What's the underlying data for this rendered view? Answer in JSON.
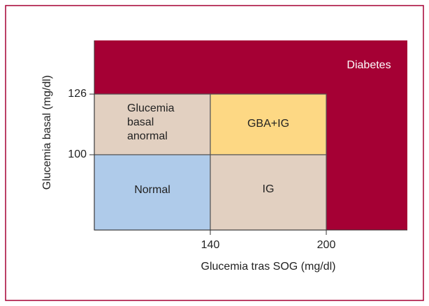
{
  "axes": {
    "x_label": "Glucemia tras SOG (mg/dl)",
    "y_label": "Glucemia basal (mg/dl)",
    "x_ticks": [
      "140",
      "200"
    ],
    "y_ticks": [
      "126",
      "100"
    ]
  },
  "regions": {
    "diabetes": "Diabetes",
    "gba": [
      "Glucemia",
      "basal",
      "anormal"
    ],
    "gba_ig": "GBA+IG",
    "normal": "Normal",
    "ig": "IG"
  }
}
